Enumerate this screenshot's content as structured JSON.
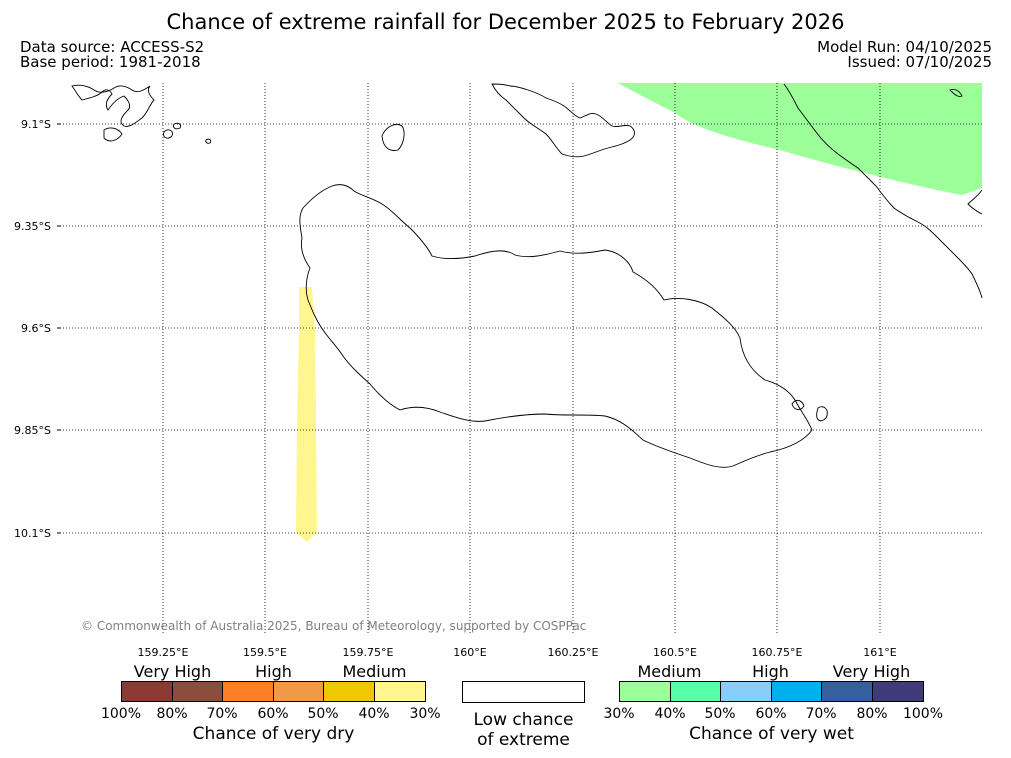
{
  "title": "Chance of extreme rainfall for December 2025 to February 2026",
  "meta": {
    "data_source": "Data source: ACCESS-S2",
    "base_period": "Base period: 1981-2018",
    "model_run": "Model Run: 04/10/2025",
    "issued": "Issued: 07/10/2025"
  },
  "map": {
    "lat_labels": [
      "9.1°S",
      "9.35°S",
      "9.6°S",
      "9.85°S",
      "10.1°S"
    ],
    "lon_labels": [
      "159.25°E",
      "159.5°E",
      "159.75°E",
      "160°E",
      "160.25°E",
      "160.5°E",
      "160.75°E",
      "161°E"
    ],
    "copyright": "© Commonwealth of Australia 2025, Bureau of Meteorology, supported by COSPPac",
    "colors": {
      "very_dry_medium": "#fff68f",
      "very_wet_medium": "#9cff9a"
    }
  },
  "legend": {
    "dry": {
      "categories": [
        "Very High",
        "High",
        "Medium"
      ],
      "colors": [
        "#8b3a32",
        "#8b4e3c",
        "#ff7f27",
        "#f09a48",
        "#f0c800",
        "#fff68f"
      ],
      "ticks": [
        "100%",
        "80%",
        "70%",
        "60%",
        "50%",
        "40%",
        "30%"
      ],
      "caption": "Chance of very dry"
    },
    "low": {
      "line1": "Low chance",
      "line2": "of extreme",
      "color": "#ffffff"
    },
    "wet": {
      "categories": [
        "Medium",
        "High",
        "Very High"
      ],
      "colors": [
        "#9cff9a",
        "#57ffa6",
        "#87cefa",
        "#00b0ec",
        "#35609d",
        "#3f3a7a"
      ],
      "ticks": [
        "30%",
        "40%",
        "50%",
        "60%",
        "70%",
        "80%",
        "100%"
      ],
      "caption": "Chance of very wet"
    }
  }
}
